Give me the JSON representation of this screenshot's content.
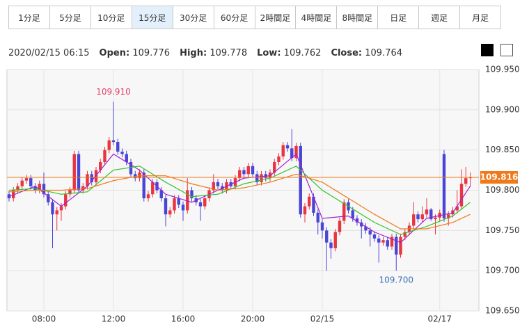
{
  "tabs": [
    "1分足",
    "5分足",
    "10分足",
    "15分足",
    "30分足",
    "60分足",
    "2時間足",
    "4時間足",
    "8時間足",
    "日足",
    "週足",
    "月足"
  ],
  "selected_tab": 3,
  "info": {
    "datetime": "2020/02/15 06:15",
    "fields": [
      {
        "label": "Open:",
        "value": 109.776
      },
      {
        "label": "High:",
        "value": 109.778
      },
      {
        "label": "Low:",
        "value": 109.762
      },
      {
        "label": "Close:",
        "value": 109.764
      }
    ]
  },
  "chart_data": {
    "type": "candlestick",
    "categories": [
      null,
      null,
      null,
      null,
      null,
      null,
      null,
      null,
      "08:00",
      null,
      null,
      null,
      null,
      null,
      null,
      null,
      null,
      null,
      null,
      null,
      null,
      null,
      null,
      null,
      "12:00",
      null,
      null,
      null,
      null,
      null,
      null,
      null,
      null,
      null,
      null,
      null,
      null,
      null,
      null,
      null,
      "16:00",
      null,
      null,
      null,
      null,
      null,
      null,
      null,
      null,
      null,
      null,
      null,
      null,
      null,
      null,
      null,
      "20:00",
      null,
      null,
      null,
      null,
      null,
      null,
      null,
      null,
      null,
      null,
      null,
      null,
      null,
      null,
      null,
      "02/15",
      null,
      null,
      null,
      null,
      null,
      null,
      null,
      null,
      null,
      null,
      null,
      null,
      null,
      null,
      null,
      null,
      null,
      null,
      null,
      null,
      null,
      null,
      null,
      null,
      null,
      null,
      "02/17",
      null,
      null,
      null,
      null,
      null,
      null
    ],
    "candles": [
      [
        109.795,
        109.799,
        109.786,
        109.79
      ],
      [
        109.79,
        109.804,
        109.786,
        109.8
      ],
      [
        109.8,
        109.809,
        109.796,
        109.805
      ],
      [
        109.805,
        109.816,
        109.801,
        109.812
      ],
      [
        109.812,
        109.819,
        109.808,
        109.815
      ],
      [
        109.815,
        109.819,
        109.801,
        109.805
      ],
      [
        109.805,
        109.809,
        109.796,
        109.8
      ],
      [
        109.8,
        109.812,
        109.796,
        109.808
      ],
      [
        109.808,
        109.822,
        109.791,
        109.795
      ],
      [
        109.795,
        109.799,
        109.781,
        109.785
      ],
      [
        109.785,
        109.789,
        109.728,
        109.77
      ],
      [
        109.77,
        109.779,
        109.75,
        109.775
      ],
      [
        109.775,
        109.784,
        109.762,
        109.78
      ],
      [
        109.78,
        109.799,
        109.776,
        109.795
      ],
      [
        109.795,
        109.804,
        109.791,
        109.8
      ],
      [
        109.8,
        109.849,
        109.796,
        109.845
      ],
      [
        109.845,
        109.849,
        109.796,
        109.8
      ],
      [
        109.8,
        109.809,
        109.796,
        109.805
      ],
      [
        109.805,
        109.824,
        109.801,
        109.82
      ],
      [
        109.82,
        109.824,
        109.806,
        109.81
      ],
      [
        109.81,
        109.829,
        109.806,
        109.825
      ],
      [
        109.825,
        109.839,
        109.821,
        109.835
      ],
      [
        109.835,
        109.854,
        109.831,
        109.85
      ],
      [
        109.85,
        109.866,
        109.846,
        109.862
      ],
      [
        109.862,
        109.91,
        109.856,
        109.86
      ],
      [
        109.86,
        109.864,
        109.844,
        109.848
      ],
      [
        109.848,
        109.852,
        109.841,
        109.845
      ],
      [
        109.845,
        109.849,
        109.831,
        109.835
      ],
      [
        109.835,
        109.839,
        109.816,
        109.82
      ],
      [
        109.82,
        109.824,
        109.811,
        109.815
      ],
      [
        109.815,
        109.826,
        109.811,
        109.822
      ],
      [
        109.822,
        109.826,
        109.786,
        109.79
      ],
      [
        109.79,
        109.799,
        109.786,
        109.795
      ],
      [
        109.795,
        109.814,
        109.791,
        109.81
      ],
      [
        109.81,
        109.814,
        109.796,
        109.8
      ],
      [
        109.8,
        109.804,
        109.786,
        109.79
      ],
      [
        109.79,
        109.794,
        109.755,
        109.77
      ],
      [
        109.77,
        109.779,
        109.766,
        109.775
      ],
      [
        109.775,
        109.794,
        109.771,
        109.79
      ],
      [
        109.79,
        109.794,
        109.778,
        109.782
      ],
      [
        109.782,
        109.786,
        109.762,
        109.775
      ],
      [
        109.775,
        109.815,
        109.771,
        109.8
      ],
      [
        109.8,
        109.804,
        109.786,
        109.79
      ],
      [
        109.79,
        109.794,
        109.781,
        109.785
      ],
      [
        109.785,
        109.789,
        109.762,
        109.78
      ],
      [
        109.78,
        109.794,
        109.776,
        109.79
      ],
      [
        109.79,
        109.804,
        109.786,
        109.8
      ],
      [
        109.8,
        109.82,
        109.796,
        109.81
      ],
      [
        109.81,
        109.814,
        109.801,
        109.805
      ],
      [
        109.805,
        109.809,
        109.796,
        109.8
      ],
      [
        109.8,
        109.814,
        109.796,
        109.81
      ],
      [
        109.81,
        109.814,
        109.801,
        109.805
      ],
      [
        109.805,
        109.819,
        109.801,
        109.815
      ],
      [
        109.815,
        109.829,
        109.811,
        109.825
      ],
      [
        109.825,
        109.829,
        109.816,
        109.82
      ],
      [
        109.82,
        109.834,
        109.816,
        109.83
      ],
      [
        109.83,
        109.834,
        109.816,
        109.82
      ],
      [
        109.82,
        109.824,
        109.806,
        109.81
      ],
      [
        109.81,
        109.824,
        109.806,
        109.82
      ],
      [
        109.82,
        109.824,
        109.811,
        109.815
      ],
      [
        109.815,
        109.826,
        109.811,
        109.822
      ],
      [
        109.822,
        109.839,
        109.818,
        109.835
      ],
      [
        109.835,
        109.846,
        109.831,
        109.842
      ],
      [
        109.842,
        109.86,
        109.838,
        109.856
      ],
      [
        109.856,
        109.86,
        109.848,
        109.852
      ],
      [
        109.852,
        109.876,
        109.836,
        109.84
      ],
      [
        109.84,
        109.859,
        109.836,
        109.855
      ],
      [
        109.855,
        109.859,
        109.766,
        109.77
      ],
      [
        109.77,
        109.784,
        109.76,
        109.78
      ],
      [
        109.78,
        109.796,
        109.776,
        109.792
      ],
      [
        109.792,
        109.796,
        109.768,
        109.772
      ],
      [
        109.772,
        109.776,
        109.745,
        109.76
      ],
      [
        109.76,
        109.764,
        109.74,
        109.75
      ],
      [
        109.75,
        109.754,
        109.7,
        109.735
      ],
      [
        109.735,
        109.739,
        109.715,
        109.728
      ],
      [
        109.728,
        109.752,
        109.724,
        109.748
      ],
      [
        109.748,
        109.766,
        109.744,
        109.762
      ],
      [
        109.762,
        109.789,
        109.758,
        109.785
      ],
      [
        109.785,
        109.789,
        109.771,
        109.775
      ],
      [
        109.775,
        109.779,
        109.761,
        109.765
      ],
      [
        109.765,
        109.769,
        109.756,
        109.76
      ],
      [
        109.76,
        109.764,
        109.74,
        109.755
      ],
      [
        109.755,
        109.759,
        109.746,
        109.75
      ],
      [
        109.75,
        109.754,
        109.73,
        109.745
      ],
      [
        109.745,
        109.749,
        109.736,
        109.74
      ],
      [
        109.74,
        109.744,
        109.71,
        109.735
      ],
      [
        109.735,
        109.742,
        109.731,
        109.738
      ],
      [
        109.738,
        109.742,
        109.726,
        109.73
      ],
      [
        109.73,
        109.746,
        109.726,
        109.742
      ],
      [
        109.742,
        109.746,
        109.7,
        109.72
      ],
      [
        109.72,
        109.746,
        109.716,
        109.742
      ],
      [
        109.742,
        109.752,
        109.738,
        109.748
      ],
      [
        109.748,
        109.76,
        109.744,
        109.756
      ],
      [
        109.756,
        109.785,
        109.752,
        109.77
      ],
      [
        109.77,
        109.774,
        109.76,
        109.764
      ],
      [
        109.764,
        109.78,
        109.76,
        109.77
      ],
      [
        109.77,
        109.79,
        109.766,
        109.776
      ],
      [
        109.776,
        109.778,
        109.762,
        109.764
      ],
      [
        109.764,
        109.77,
        109.745,
        109.766
      ],
      [
        109.766,
        109.776,
        109.762,
        109.772
      ],
      [
        109.845,
        109.85,
        109.761,
        109.765
      ],
      [
        109.765,
        109.774,
        109.756,
        109.77
      ],
      [
        109.77,
        109.779,
        109.766,
        109.775
      ],
      [
        109.775,
        109.8,
        109.771,
        109.78
      ],
      [
        109.78,
        109.826,
        109.776,
        109.808
      ],
      [
        109.808,
        109.829,
        109.804,
        109.815
      ],
      [
        109.815,
        109.822,
        109.804,
        109.816
      ]
    ],
    "up_color": "#e8353f",
    "down_color": "#4a45d6",
    "series": [
      {
        "color": "#a020d0",
        "x": [
          0,
          6,
          12,
          18,
          24,
          30,
          36,
          42,
          48,
          54,
          60,
          66,
          72,
          78,
          84,
          90,
          96,
          102,
          106
        ],
        "values": [
          109.792,
          109.805,
          109.78,
          109.805,
          109.845,
          109.825,
          109.795,
          109.785,
          109.8,
          109.815,
          109.818,
          109.845,
          109.765,
          109.768,
          109.748,
          109.735,
          109.765,
          109.772,
          109.805
        ]
      },
      {
        "color": "#33c22a",
        "x": [
          0,
          6,
          12,
          18,
          24,
          30,
          36,
          42,
          48,
          54,
          60,
          66,
          72,
          78,
          84,
          90,
          96,
          102,
          106
        ],
        "values": [
          109.8,
          109.802,
          109.795,
          109.798,
          109.825,
          109.83,
          109.81,
          109.792,
          109.795,
          109.808,
          109.815,
          109.83,
          109.8,
          109.78,
          109.76,
          109.745,
          109.755,
          109.768,
          109.785
        ]
      },
      {
        "color": "#f07a1a",
        "x": [
          0,
          6,
          12,
          18,
          24,
          30,
          36,
          42,
          48,
          54,
          60,
          66,
          72,
          78,
          84,
          90,
          96,
          102,
          106
        ],
        "values": [
          109.798,
          109.8,
          109.8,
          109.802,
          109.812,
          109.818,
          109.818,
          109.808,
          109.8,
          109.803,
          109.81,
          109.82,
          109.81,
          109.79,
          109.77,
          109.752,
          109.752,
          109.76,
          109.77
        ]
      }
    ],
    "ylim": [
      109.65,
      109.95
    ],
    "yticks": [
      {
        "value": 109.65,
        "label": "109.650"
      },
      {
        "value": 109.7,
        "label": "109.700"
      },
      {
        "value": 109.75,
        "label": "109.750"
      },
      {
        "value": 109.8,
        "label": "109.800"
      },
      {
        "value": 109.85,
        "label": "109.850"
      },
      {
        "value": 109.9,
        "label": "109.900"
      },
      {
        "value": 109.95,
        "label": "109.950"
      }
    ],
    "grid": true,
    "current_price": 109.816,
    "current_price_color": "#f07a1a",
    "annotations": [
      {
        "x": 24,
        "value": 109.91,
        "label": "109.910",
        "color": "#e0406a",
        "position": "above"
      },
      {
        "x": 89,
        "value": 109.7,
        "label": "109.700",
        "color": "#3b6fb5",
        "position": "below"
      }
    ]
  }
}
